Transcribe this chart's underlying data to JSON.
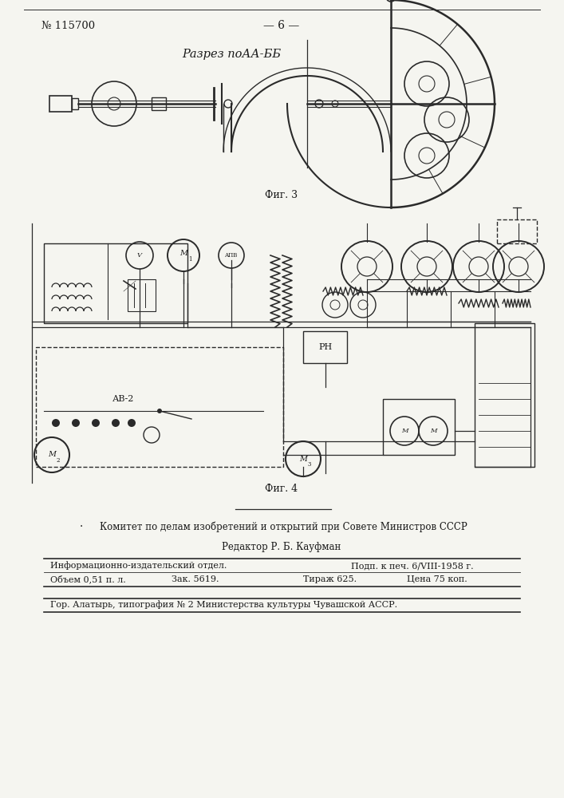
{
  "page_number": "№ 115700",
  "page_center_text": "— 6 —",
  "fig3_label": "Фиг. 3",
  "fig4_label": "Фиг. 4",
  "fig3_title": "Разрез поАА-ББ",
  "committee_text": "Комитет по делам изобретений и открытий при Совете Министров СССР",
  "editor_text": "Редактор Р. Б. Кауфман",
  "info_col1_line1": "Информационно-издательский отдел.",
  "info_col1_line2": "Объем 0,51 п. л.",
  "info_col2_line1": "Зак. 5619.",
  "info_col3_line1": "Подп. к печ. 6/VIII-1958 г.",
  "info_col3_line2": "Тираж 625.",
  "info_col4_line2": "Цена 75 коп.",
  "footer_text": "Гор. Алатырь, типография № 2 Министерства культуры Чувашской АССР.",
  "bg_color": "#f5f5f0",
  "text_color": "#1a1a1a",
  "line_color": "#2a2a2a",
  "dark_color": "#111111"
}
